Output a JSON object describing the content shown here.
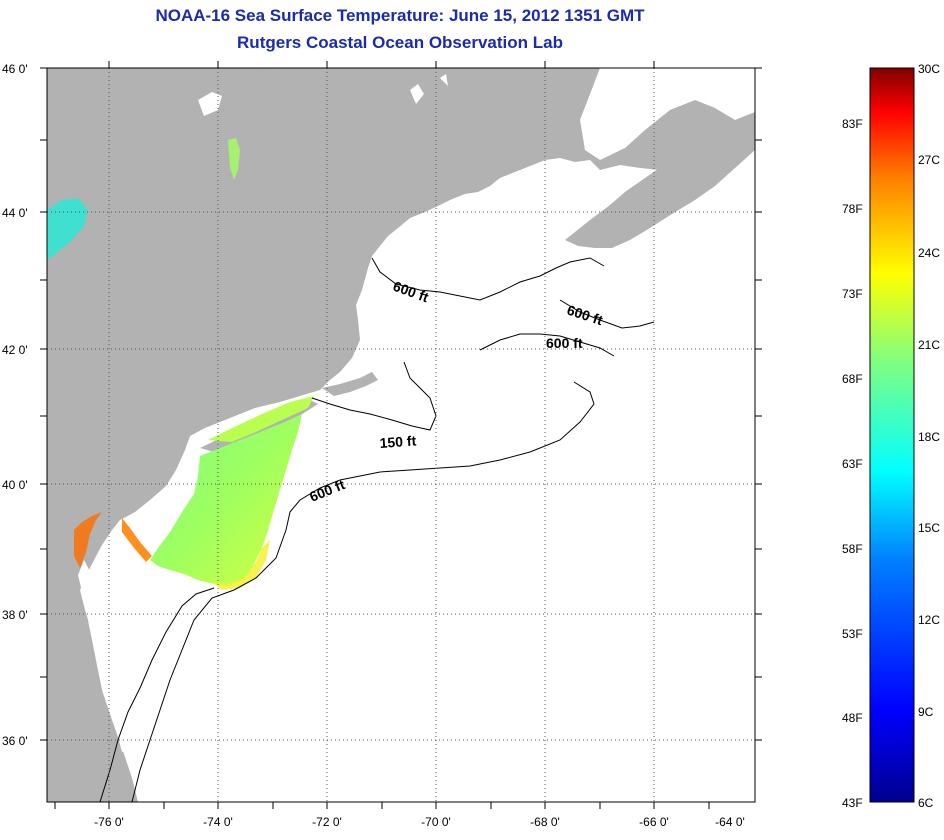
{
  "header": {
    "title_line1": "NOAA-16 Sea Surface Temperature:  June 15, 2012 1351 GMT",
    "title_line2": "Rutgers Coastal Ocean Observation Lab"
  },
  "map": {
    "lat_ticks": [
      "46 0'",
      "44 0'",
      "42 0'",
      "40 0'",
      "38 0'",
      "36 0'"
    ],
    "lon_ticks": [
      "-76 0'",
      "-74 0'",
      "-72 0'",
      "-70 0'",
      "-68 0'",
      "-66 0'",
      "-64 0'"
    ],
    "contours": [
      {
        "label": "600 ft"
      },
      {
        "label": "600 ft"
      },
      {
        "label": "600 ft"
      },
      {
        "label": "150 ft"
      },
      {
        "label": "600 ft"
      }
    ],
    "colors": {
      "land": "#b2b2b2",
      "ocean": "#ffffff",
      "grid": "#555555"
    }
  },
  "colorbar": {
    "celsius": [
      "30C",
      "27C",
      "24C",
      "21C",
      "18C",
      "15C",
      "12C",
      "9C",
      "6C"
    ],
    "fahrenheit": [
      "83F",
      "78F",
      "73F",
      "68F",
      "63F",
      "58F",
      "53F",
      "48F",
      "43F"
    ],
    "stops": [
      "#00008f",
      "#0000ff",
      "#0080ff",
      "#00ffff",
      "#80ff80",
      "#ffff00",
      "#ff8000",
      "#ff0000",
      "#800000"
    ]
  }
}
